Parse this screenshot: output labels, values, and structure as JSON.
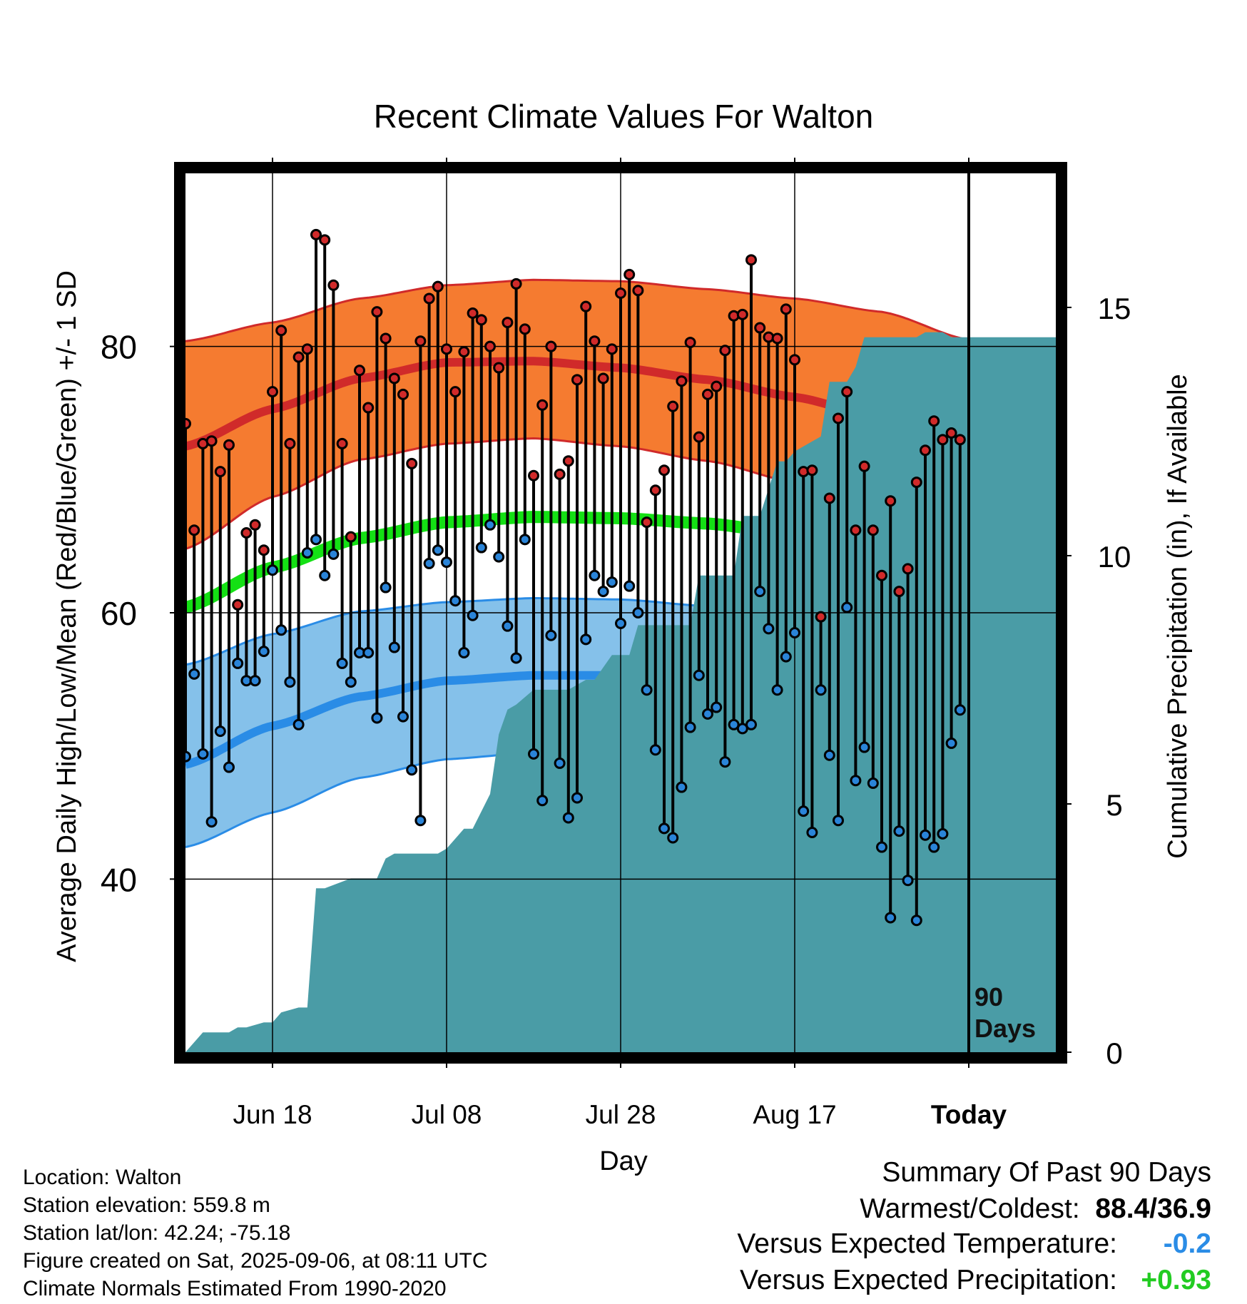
{
  "chart_data": {
    "type": "line",
    "title": "Recent Climate Values For Walton",
    "xlabel": "Day",
    "ylabel": "Average Daily High/Low/Mean (Red/Blue/Green) +/- 1 SD",
    "y2label": "Cumulative Precipitation (in), If Available",
    "ylim": [
      27,
      93
    ],
    "y2lim": [
      0,
      17.7
    ],
    "yticks": [
      40,
      60,
      80
    ],
    "y2ticks": [
      0,
      5,
      10,
      15
    ],
    "x_tick_labels": [
      "Jun 18",
      "Jul 08",
      "Jul 28",
      "Aug 17",
      "Today"
    ],
    "today_label": "90\nDays",
    "grid": true,
    "normals": {
      "day": [
        0,
        10,
        20,
        30,
        40,
        50,
        60,
        70,
        80,
        90,
        100
      ],
      "high_mean": [
        72.5,
        75.3,
        77.6,
        78.8,
        78.9,
        78.4,
        77.5,
        76.2,
        74.6,
        72.8,
        70.5
      ],
      "high_upper": [
        80.4,
        81.8,
        83.6,
        84.6,
        85.0,
        84.9,
        84.3,
        83.6,
        82.6,
        80.5,
        77.6
      ],
      "high_lower": [
        64.8,
        68.7,
        71.5,
        72.7,
        73.1,
        72.5,
        71.4,
        69.8,
        67.9,
        66.0,
        63.6
      ],
      "mean_line": [
        60.4,
        63.4,
        65.6,
        66.8,
        67.2,
        67.1,
        66.7,
        65.9,
        64.7,
        62.1,
        58.2
      ],
      "low_mean": [
        48.6,
        51.5,
        53.7,
        54.9,
        55.3,
        55.3,
        55.0,
        54.1,
        52.7,
        50.3,
        46.8
      ],
      "low_upper": [
        56.1,
        58.4,
        60.1,
        60.8,
        61.1,
        61.0,
        60.5,
        60.0,
        59.1,
        57.1,
        54.2
      ],
      "low_lower": [
        42.4,
        45.0,
        47.6,
        49.0,
        49.5,
        49.3,
        48.9,
        47.7,
        45.9,
        42.9,
        38.9
      ]
    },
    "series": [
      {
        "name": "Daily High",
        "color": "#d02a2a",
        "values": [
          74.2,
          66.2,
          72.7,
          72.9,
          70.6,
          72.6,
          60.6,
          66.0,
          66.6,
          64.7,
          76.6,
          81.2,
          72.7,
          79.2,
          79.8,
          88.4,
          88.0,
          84.6,
          72.7,
          65.7,
          78.2,
          75.4,
          82.6,
          80.6,
          77.6,
          76.4,
          71.2,
          80.4,
          83.6,
          84.5,
          79.8,
          76.6,
          79.6,
          82.5,
          82.0,
          80.0,
          78.4,
          81.8,
          84.7,
          81.3,
          70.3,
          75.6,
          80.0,
          70.4,
          71.4,
          77.5,
          83.0,
          80.4,
          77.6,
          79.8,
          84.0,
          85.4,
          84.2,
          66.8,
          69.2,
          70.7,
          75.5,
          77.4,
          80.3,
          73.2,
          76.4,
          77.0,
          79.7,
          82.3,
          82.4,
          86.5,
          81.4,
          80.7,
          80.6,
          82.8,
          79.0,
          70.6,
          70.7,
          59.7,
          68.6,
          74.6,
          76.6,
          66.2,
          71.0,
          66.2,
          62.8,
          68.4,
          61.6,
          63.3,
          69.8,
          72.2,
          74.4,
          73.0,
          73.5,
          73.0
        ]
      },
      {
        "name": "Daily Low",
        "color": "#2a84d8",
        "values": [
          49.2,
          55.4,
          49.4,
          44.3,
          51.1,
          48.4,
          56.2,
          54.9,
          54.9,
          57.1,
          63.2,
          58.7,
          54.8,
          51.6,
          64.5,
          65.5,
          62.8,
          64.4,
          56.2,
          54.8,
          57.0,
          57.0,
          52.1,
          61.9,
          57.4,
          52.2,
          48.2,
          44.4,
          63.7,
          64.7,
          63.8,
          60.9,
          57.0,
          59.8,
          64.9,
          66.6,
          64.2,
          59.0,
          56.6,
          65.5,
          49.4,
          45.9,
          58.3,
          48.7,
          44.6,
          46.1,
          58.0,
          62.8,
          61.6,
          62.3,
          59.2,
          62.0,
          60.0,
          54.2,
          49.7,
          43.8,
          43.1,
          46.9,
          51.4,
          55.3,
          52.4,
          52.9,
          48.8,
          51.6,
          51.3,
          51.6,
          61.6,
          58.8,
          54.2,
          56.7,
          58.5,
          45.1,
          43.5,
          54.2,
          49.3,
          44.4,
          60.4,
          47.4,
          49.9,
          47.2,
          42.4,
          37.1,
          43.6,
          39.9,
          36.9,
          43.3,
          42.4,
          43.4,
          50.2,
          52.7
        ]
      },
      {
        "name": "Cumulative Precipitation",
        "color": "#4a9ca6",
        "days": [
          0,
          2,
          3,
          5,
          6,
          7,
          9,
          10,
          11,
          13,
          14,
          15,
          16,
          19,
          20,
          22,
          23,
          24,
          29,
          30,
          32,
          33,
          35,
          36,
          37,
          38,
          40,
          44,
          46,
          47,
          49,
          50,
          51,
          52,
          53,
          58,
          59,
          63,
          64,
          66,
          68,
          69,
          70,
          73,
          74,
          76,
          77,
          78,
          80,
          81,
          84,
          85,
          87,
          88,
          89,
          100
        ],
        "values": [
          0,
          0.4,
          0.4,
          0.4,
          0.5,
          0.5,
          0.6,
          0.6,
          0.8,
          0.9,
          0.9,
          3.3,
          3.3,
          3.5,
          3.5,
          3.5,
          3.9,
          4.0,
          4.0,
          4.1,
          4.5,
          4.5,
          5.2,
          6.4,
          6.9,
          7.0,
          7.3,
          7.3,
          7.5,
          7.5,
          8.0,
          8.0,
          8.0,
          8.6,
          8.6,
          8.6,
          9.6,
          9.6,
          10.8,
          10.8,
          11.9,
          11.9,
          12.1,
          12.4,
          13.5,
          13.5,
          13.8,
          14.4,
          14.4,
          14.4,
          14.4,
          14.5,
          14.5,
          14.4,
          14.4,
          14.4
        ]
      }
    ]
  },
  "footer": {
    "location": "Location: Walton",
    "elevation": "Station elevation: 559.8 m",
    "latlon": "Station lat/lon: 42.24; -75.18",
    "created": "Figure created on Sat, 2025-09-06, at 08:11 UTC",
    "normals_period": "Climate Normals Estimated From 1990-2020"
  },
  "summary": {
    "title": "Summary Of Past 90 Days",
    "warmest_label": "Warmest/Coldest:",
    "warmest_value": "88.4/36.9",
    "temp_label": "Versus Expected Temperature:",
    "temp_value": "-0.2",
    "temp_color": "#2a8ce6",
    "precip_label": "Versus Expected Precipitation:",
    "precip_value": "+0.93",
    "precip_color": "#22cc22"
  }
}
